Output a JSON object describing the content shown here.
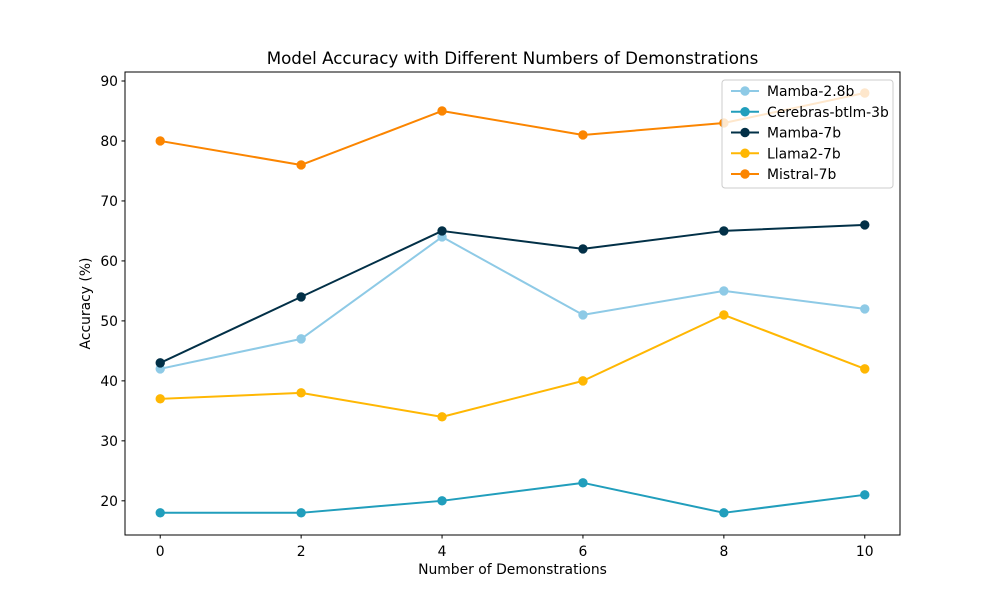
{
  "chart_data": {
    "type": "line",
    "title": "Model Accuracy with Different Numbers of Demonstrations",
    "xlabel": "Number of Demonstrations",
    "ylabel": "Accuracy (%)",
    "x": [
      0,
      2,
      4,
      6,
      8,
      10
    ],
    "xticks": [
      0,
      2,
      4,
      6,
      8,
      10
    ],
    "yticks": [
      20,
      30,
      40,
      50,
      60,
      70,
      80,
      90
    ],
    "xlim": [
      -0.5,
      10.5
    ],
    "ylim": [
      14.3,
      91.5
    ],
    "grid": false,
    "legend_position": "top-right",
    "marker": "circle",
    "series": [
      {
        "name": "Mamba-2.8b",
        "color": "#8ecae6",
        "values": [
          42,
          47,
          64,
          51,
          55,
          52
        ]
      },
      {
        "name": "Cerebras-btlm-3b",
        "color": "#219ebc",
        "values": [
          18,
          18,
          20,
          23,
          18,
          21
        ]
      },
      {
        "name": "Mamba-7b",
        "color": "#023047",
        "values": [
          43,
          54,
          65,
          62,
          65,
          66
        ]
      },
      {
        "name": "Llama2-7b",
        "color": "#ffb703",
        "values": [
          37,
          38,
          34,
          40,
          51,
          42
        ]
      },
      {
        "name": "Mistral-7b",
        "color": "#fb8500",
        "values": [
          80,
          76,
          85,
          81,
          83,
          88
        ]
      }
    ]
  }
}
